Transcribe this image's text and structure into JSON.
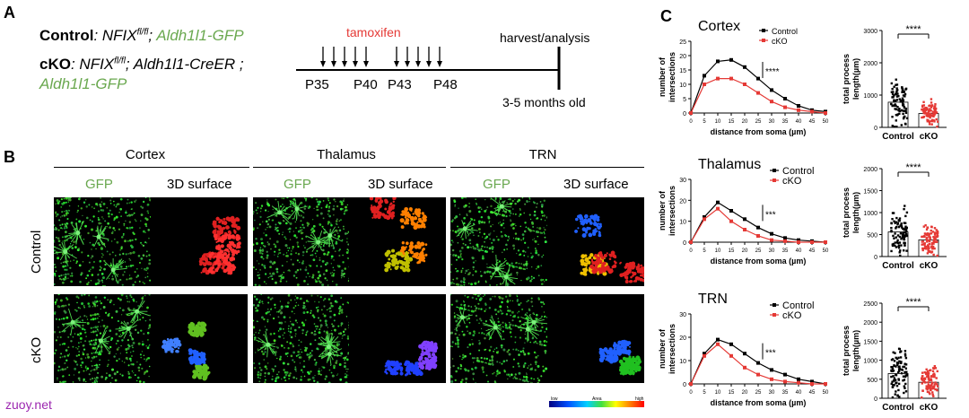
{
  "panelA": {
    "letter": "A",
    "control_label": "Control",
    "control_geno_1": ": NFIX",
    "control_sup": "fl/fl",
    "control_geno_2": "; ",
    "control_geno_green": "Aldh1l1-GFP",
    "cko_label": "cKO",
    "cko_geno_1": ": NFIX",
    "cko_sup": "fl/fl",
    "cko_geno_2": "; Aldh1l1-CreER ;",
    "cko_geno_green": "Aldh1l1-GFP",
    "tamoxifen": "tamoxifen",
    "harvest": "harvest/analysis",
    "timepoints": [
      "P35",
      "P40",
      "P43",
      "P48"
    ],
    "age": "3-5 months old"
  },
  "panelB": {
    "letter": "B",
    "regions": [
      "Cortex",
      "Thalamus",
      "TRN"
    ],
    "col_gfp": "GFP",
    "col_surface": "3D surface",
    "row_control": "Control",
    "row_cko": "cKO",
    "cbar_low": "low",
    "cbar_mid": "Area",
    "cbar_high": "high"
  },
  "panelC": {
    "letter": "C",
    "legend_control": "Control",
    "legend_cko": "cKO",
    "colors": {
      "control": "#000000",
      "cko": "#e53935"
    }
  },
  "chart_data": [
    {
      "type": "line",
      "title": "Cortex",
      "xlabel": "distance from soma (µm)",
      "ylabel": "number of intersections",
      "x": [
        0,
        5,
        10,
        15,
        20,
        25,
        30,
        35,
        40,
        45,
        50
      ],
      "ylim": [
        0,
        25
      ],
      "yticks": [
        0,
        5,
        10,
        15,
        20,
        25
      ],
      "series": [
        {
          "name": "Control",
          "values": [
            0,
            13,
            18,
            18.5,
            16,
            12,
            8,
            5,
            2.5,
            1,
            0.5
          ]
        },
        {
          "name": "cKO",
          "values": [
            0,
            10,
            12,
            12,
            10,
            7,
            4,
            2,
            1,
            0.5,
            0
          ]
        }
      ],
      "significance": "****"
    },
    {
      "type": "line",
      "title": "Thalamus",
      "xlabel": "distance from soma (µm)",
      "ylabel": "number of intersections",
      "x": [
        0,
        5,
        10,
        15,
        20,
        25,
        30,
        35,
        40,
        45,
        50
      ],
      "ylim": [
        0,
        30
      ],
      "yticks": [
        0,
        10,
        20,
        30
      ],
      "series": [
        {
          "name": "Control",
          "values": [
            0,
            12,
            19,
            15,
            11,
            7,
            4,
            2,
            1,
            0.5,
            0
          ]
        },
        {
          "name": "cKO",
          "values": [
            0,
            11,
            16,
            10,
            6,
            3,
            1,
            0.5,
            0,
            0,
            0
          ]
        }
      ],
      "significance": "***"
    },
    {
      "type": "line",
      "title": "TRN",
      "xlabel": "distance from soma (µm)",
      "ylabel": "number of intersections",
      "x": [
        0,
        5,
        10,
        15,
        20,
        25,
        30,
        35,
        40,
        45,
        50
      ],
      "ylim": [
        0,
        30
      ],
      "yticks": [
        0,
        10,
        20,
        30
      ],
      "series": [
        {
          "name": "Control",
          "values": [
            0,
            13,
            19,
            17,
            13,
            9,
            6,
            4,
            2,
            1,
            0
          ]
        },
        {
          "name": "cKO",
          "values": [
            0,
            12,
            17,
            12,
            7,
            4,
            2,
            1,
            0.5,
            0,
            0
          ]
        }
      ],
      "significance": "***"
    },
    {
      "type": "scatter",
      "ylabel": "total process length(µm)",
      "categories": [
        "Control",
        "cKO"
      ],
      "ylim": [
        0,
        3000
      ],
      "yticks": [
        0,
        1000,
        2000,
        3000
      ],
      "bar_means": [
        780,
        430
      ],
      "significance": "****"
    },
    {
      "type": "scatter",
      "ylabel": "total process length(µm)",
      "categories": [
        "Control",
        "cKO"
      ],
      "ylim": [
        0,
        2000
      ],
      "yticks": [
        0,
        500,
        1000,
        1500,
        2000
      ],
      "bar_means": [
        560,
        380
      ],
      "significance": "****"
    },
    {
      "type": "scatter",
      "ylabel": "total process length(µm)",
      "categories": [
        "Control",
        "cKO"
      ],
      "ylim": [
        0,
        2500
      ],
      "yticks": [
        0,
        500,
        1000,
        1500,
        2000,
        2500
      ],
      "bar_means": [
        650,
        420
      ],
      "significance": "****"
    }
  ],
  "watermark": "zuoy.net"
}
